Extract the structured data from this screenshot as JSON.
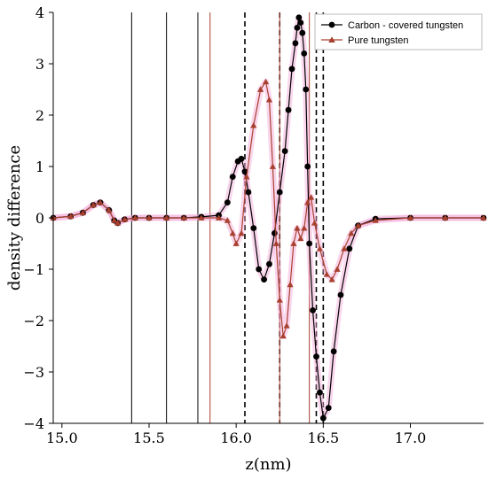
{
  "chart_data": {
    "type": "line",
    "xlabel": "z(nm)",
    "ylabel": "density difference",
    "xlim": [
      14.95,
      17.42
    ],
    "ylim": [
      -4,
      4
    ],
    "x_ticks": [
      "15.0",
      "15.5",
      "16.0",
      "16.5",
      "17.0"
    ],
    "x_tick_values": [
      15.0,
      15.5,
      16.0,
      16.5,
      17.0
    ],
    "y_ticks": [
      "4",
      "3",
      "2",
      "1",
      "0",
      "−1",
      "−2",
      "−3",
      "−4"
    ],
    "y_tick_values": [
      4,
      3,
      2,
      1,
      0,
      -1,
      -2,
      -3,
      -4
    ],
    "legend_position": "top-right",
    "series": [
      {
        "name": "Carbon - covered tungsten",
        "color": "#000000",
        "marker": "circle",
        "x": [
          14.95,
          15.05,
          15.12,
          15.18,
          15.22,
          15.27,
          15.3,
          15.32,
          15.36,
          15.42,
          15.5,
          15.6,
          15.7,
          15.8,
          15.9,
          15.95,
          15.98,
          16.01,
          16.03,
          16.05,
          16.07,
          16.1,
          16.13,
          16.16,
          16.19,
          16.22,
          16.25,
          16.28,
          16.3,
          16.32,
          16.34,
          16.35,
          16.36,
          16.37,
          16.38,
          16.39,
          16.4,
          16.41,
          16.42,
          16.44,
          16.46,
          16.48,
          16.5,
          16.53,
          16.56,
          16.6,
          16.65,
          16.7,
          16.8,
          17.0,
          17.2,
          17.42
        ],
        "y": [
          0.0,
          0.03,
          0.1,
          0.25,
          0.3,
          0.15,
          -0.05,
          -0.1,
          -0.03,
          0.0,
          0.0,
          0.0,
          0.0,
          0.02,
          0.05,
          0.3,
          0.8,
          1.1,
          1.15,
          0.9,
          0.5,
          -0.2,
          -1.0,
          -1.2,
          -0.9,
          -0.3,
          0.5,
          1.3,
          2.1,
          2.9,
          3.4,
          3.7,
          3.9,
          3.8,
          3.6,
          3.2,
          2.5,
          1.0,
          -0.5,
          -1.8,
          -2.7,
          -3.4,
          -3.9,
          -3.7,
          -2.6,
          -1.5,
          -0.6,
          -0.15,
          -0.02,
          0.0,
          0.0,
          0.0
        ]
      },
      {
        "name": "Pure tungsten",
        "color": "#a8402f",
        "marker": "triangle",
        "x": [
          14.95,
          15.05,
          15.12,
          15.18,
          15.22,
          15.27,
          15.3,
          15.32,
          15.36,
          15.42,
          15.5,
          15.6,
          15.7,
          15.8,
          15.9,
          15.95,
          15.98,
          16.0,
          16.03,
          16.06,
          16.1,
          16.14,
          16.17,
          16.19,
          16.21,
          16.23,
          16.25,
          16.27,
          16.29,
          16.31,
          16.33,
          16.35,
          16.37,
          16.39,
          16.41,
          16.43,
          16.45,
          16.48,
          16.52,
          16.55,
          16.58,
          16.62,
          16.66,
          16.7,
          16.8,
          17.0,
          17.2,
          17.42
        ],
        "y": [
          0.0,
          0.03,
          0.1,
          0.25,
          0.3,
          0.15,
          -0.05,
          -0.1,
          -0.03,
          0.0,
          0.0,
          0.0,
          0.0,
          0.0,
          0.0,
          -0.05,
          -0.3,
          -0.5,
          -0.3,
          0.8,
          1.8,
          2.5,
          2.65,
          2.3,
          1.0,
          -0.5,
          -1.6,
          -2.3,
          -2.1,
          -1.3,
          -0.5,
          -0.2,
          -0.4,
          -0.2,
          0.3,
          0.4,
          -0.1,
          -0.6,
          -1.1,
          -1.2,
          -1.0,
          -0.6,
          -0.3,
          -0.15,
          -0.05,
          0.0,
          0.0,
          0.0
        ]
      }
    ],
    "vertical_lines": [
      {
        "x": 15.4,
        "color": "#000000",
        "style": "solid"
      },
      {
        "x": 15.6,
        "color": "#000000",
        "style": "solid"
      },
      {
        "x": 15.78,
        "color": "#000000",
        "style": "solid"
      },
      {
        "x": 15.85,
        "color": "#a8402f",
        "style": "solid"
      },
      {
        "x": 16.05,
        "color": "#000000",
        "style": "dashed"
      },
      {
        "x": 16.25,
        "color": "#000000",
        "style": "dashed"
      },
      {
        "x": 16.25,
        "color": "#a8402f",
        "style": "solid"
      },
      {
        "x": 16.42,
        "color": "#a8402f",
        "style": "solid"
      },
      {
        "x": 16.46,
        "color": "#000000",
        "style": "dashed"
      },
      {
        "x": 16.5,
        "color": "#000000",
        "style": "dashed"
      }
    ]
  }
}
